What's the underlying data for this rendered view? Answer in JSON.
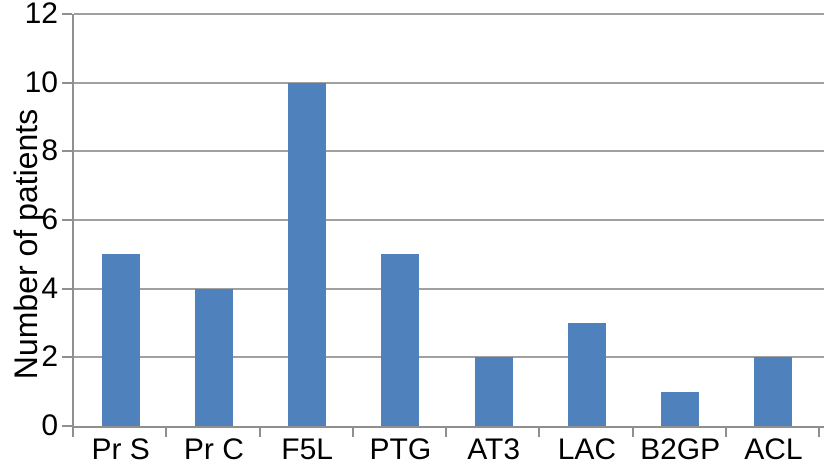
{
  "chart_data": {
    "type": "bar",
    "categories": [
      "Pr S",
      "Pr C",
      "F5L",
      "PTG",
      "AT3",
      "LAC",
      "B2GP",
      "ACL"
    ],
    "values": [
      5,
      4,
      10,
      5,
      2,
      3,
      1,
      2
    ],
    "title": "",
    "xlabel": "",
    "ylabel": "Number of patients",
    "ylim": [
      0,
      12
    ],
    "ytick_step": 2,
    "yticks": [
      0,
      2,
      4,
      6,
      8,
      10,
      12
    ],
    "grid": "horizontal",
    "legend_position": "none",
    "bar_color": "#4F81BD",
    "gridline_color": "#A0A0A0",
    "axis_color": "#8F8F8F",
    "text_color": "#000000",
    "background_color": "#FFFFFF"
  }
}
